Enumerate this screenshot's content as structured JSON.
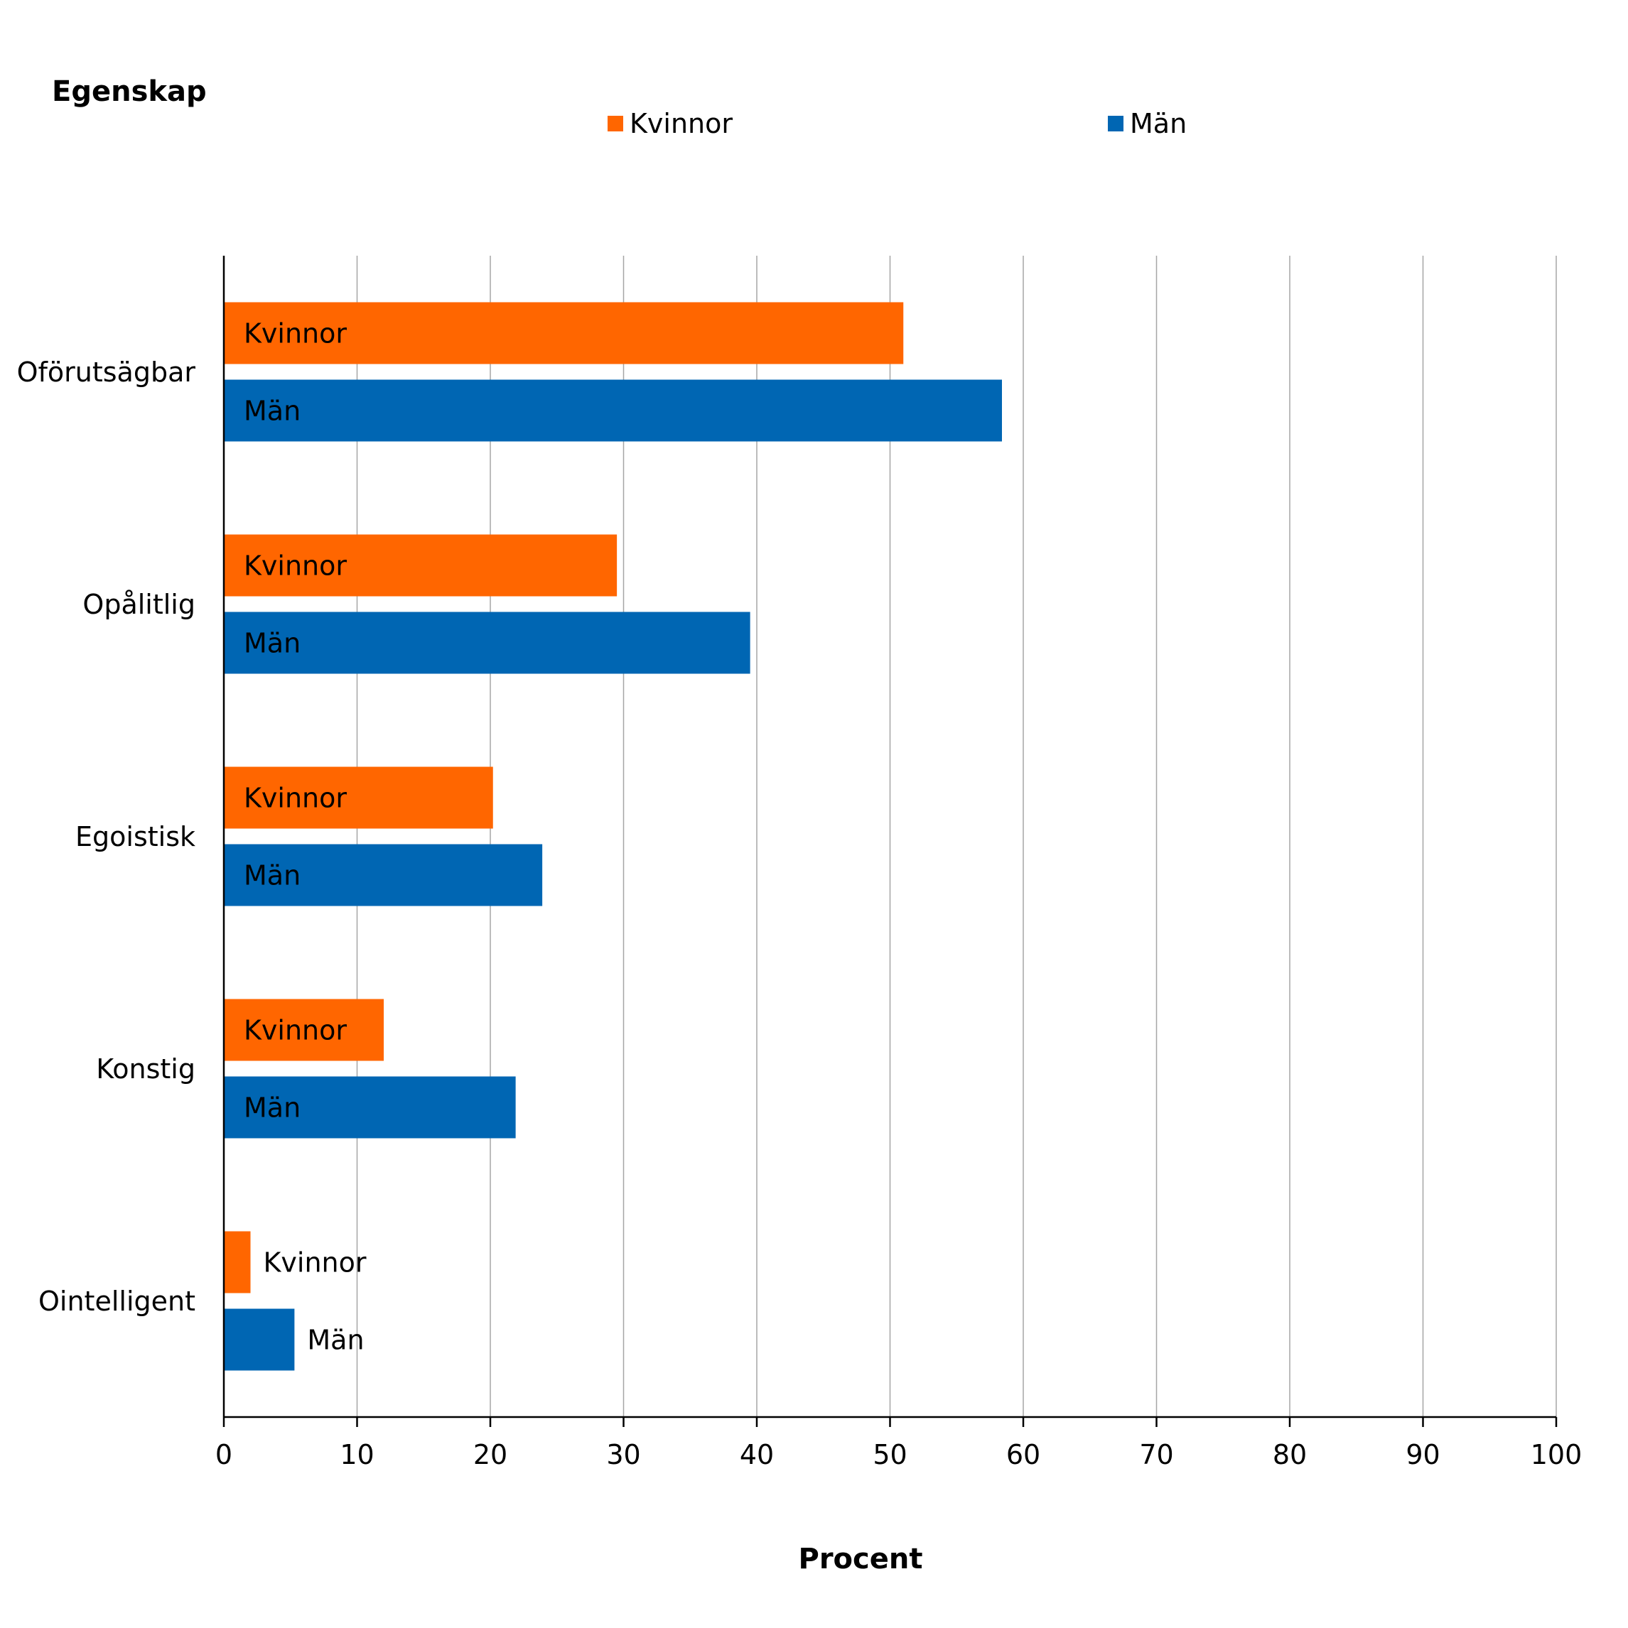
{
  "chart_data": {
    "type": "bar",
    "orientation": "horizontal",
    "ylabel": "Egenskap",
    "xlabel": "Procent",
    "categories": [
      "Oförutsägbar",
      "Opålitlig",
      "Egoistisk",
      "Konstig",
      "Ointelligent"
    ],
    "series": [
      {
        "name": "Kvinnor",
        "color": "#ff6600",
        "label_color": "#000000",
        "values": [
          51,
          29.5,
          20.2,
          12,
          2
        ]
      },
      {
        "name": "Män",
        "color": "#0066b3",
        "label_color": "#ffffff",
        "values": [
          58.4,
          39.5,
          23.9,
          21.9,
          5.3
        ]
      }
    ],
    "xlim": [
      0,
      100
    ],
    "xticks": [
      0,
      10,
      20,
      30,
      40,
      50,
      60,
      70,
      80,
      90,
      100
    ],
    "grid": "vertical",
    "legend_placement": "top"
  }
}
